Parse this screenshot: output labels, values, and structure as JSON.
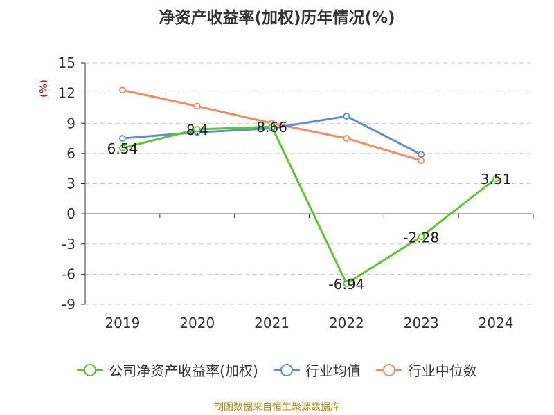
{
  "chart_data": {
    "type": "line",
    "title": "净资产收益率(加权)历年情况(%)",
    "ylabel": "(%)",
    "categories": [
      "2019",
      "2020",
      "2021",
      "2022",
      "2023",
      "2024"
    ],
    "ylim": [
      -9,
      15
    ],
    "yticks": [
      "15",
      "12",
      "9",
      "6",
      "3",
      "0",
      "-3",
      "-6",
      "-9"
    ],
    "grid": true,
    "legend_position": "bottom",
    "series": [
      {
        "name": "公司净资产收益率(加权)",
        "color": "#5cc729",
        "values": [
          6.54,
          8.4,
          8.66,
          -6.94,
          -2.28,
          3.51
        ],
        "labels": [
          "6.54",
          "8.4",
          "8.66",
          "-6.94",
          "-2.28",
          "3.51"
        ]
      },
      {
        "name": "行业均值",
        "color": "#5a8ddc",
        "values": [
          7.5,
          8.1,
          8.5,
          9.7,
          5.9,
          null
        ]
      },
      {
        "name": "行业中位数",
        "color": "#f58a5a",
        "values": [
          12.3,
          10.7,
          9.0,
          7.5,
          5.3,
          null
        ]
      }
    ]
  },
  "source": "制图数据来自恒生聚源数据库"
}
